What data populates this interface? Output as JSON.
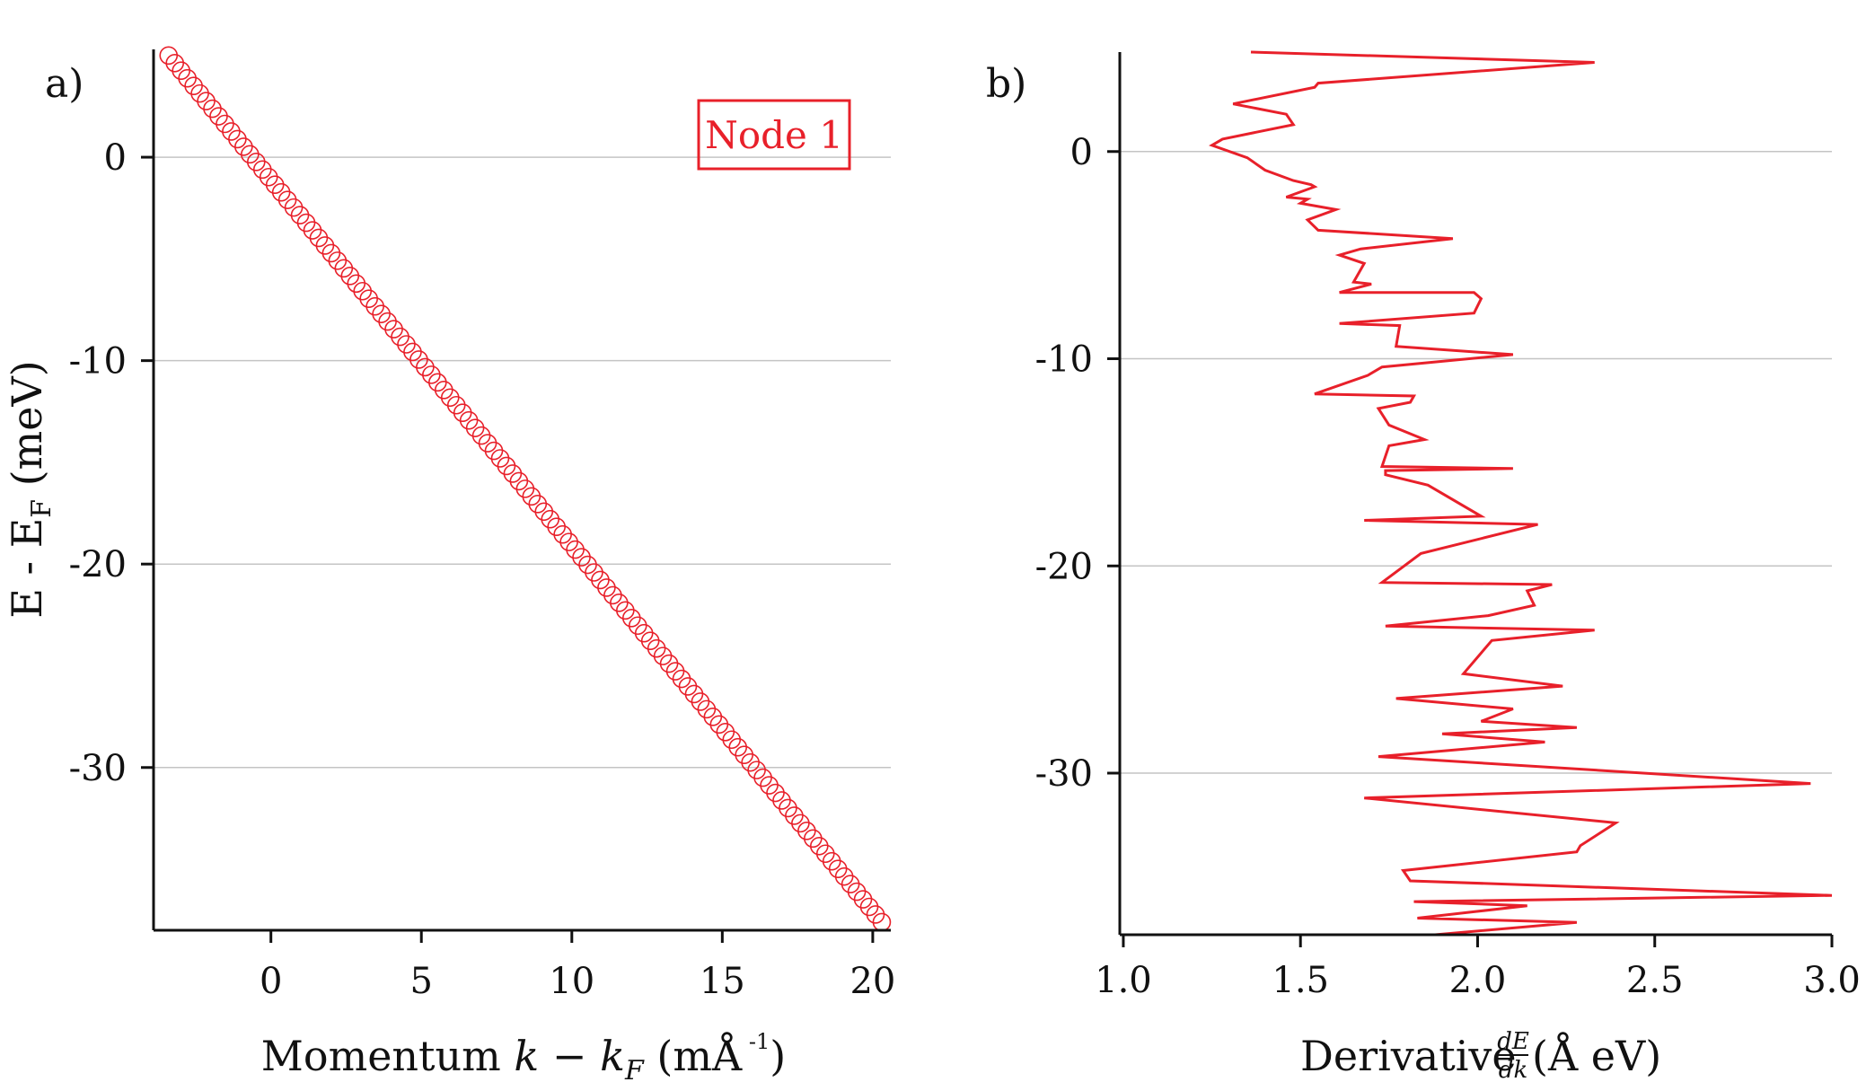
{
  "chart_data": [
    {
      "type": "scatter",
      "panel_label": "a)",
      "annotation": "Node 1",
      "xlabel": {
        "prefix": "Momentum ",
        "var": "k",
        "op": " − ",
        "var2": "k",
        "sub": "F",
        "unit_open": " (mÅ",
        "sup": " -1",
        "unit_close": ")"
      },
      "ylabel": {
        "main": "E - E",
        "sub": "F",
        "unit": " (meV)"
      },
      "xlim": [
        -3.9,
        20.6
      ],
      "ylim": [
        -38.0,
        5.3
      ],
      "xticks": [
        "0",
        "5",
        "10",
        "15",
        "20"
      ],
      "yticks": [
        "0",
        "-10",
        "-20",
        "-30"
      ],
      "grid": true,
      "marker_color": "#e8202a",
      "series": [
        {
          "x_start": -3.4,
          "x_end": 20.3,
          "y_start": 5.0,
          "y_end": -37.6,
          "points": 115
        }
      ]
    },
    {
      "type": "line",
      "panel_label": "b)",
      "xlabel": {
        "main": "Derivative ",
        "frac_num": "dE",
        "frac_den": "dk",
        "unit": " (Å eV)"
      },
      "xlim": [
        0.99,
        3.0
      ],
      "ylim": [
        -37.8,
        4.8
      ],
      "xticks": [
        "1.0",
        "1.5",
        "2.0",
        "2.5",
        "3.0"
      ],
      "yticks": [
        "0",
        "-10",
        "-20",
        "-30"
      ],
      "grid": true,
      "line_color": "#e8202a",
      "series": [
        {
          "x": [
            1.36,
            2.33,
            1.55,
            1.54,
            1.31,
            1.46,
            1.48,
            1.28,
            1.25,
            1.35,
            1.4,
            1.48,
            1.53,
            1.54,
            1.46,
            1.52,
            1.5,
            1.6,
            1.52,
            1.55,
            1.93,
            1.67,
            1.61,
            1.68,
            1.65,
            1.7,
            1.61,
            1.99,
            2.01,
            1.99,
            1.61,
            1.78,
            1.77,
            2.1,
            1.73,
            1.69,
            1.54,
            1.82,
            1.81,
            1.72,
            1.75,
            1.85,
            1.75,
            1.73,
            2.1,
            1.74,
            1.74,
            1.86,
            2.01,
            1.68,
            2.17,
            1.84,
            1.73,
            2.21,
            2.14,
            2.16,
            2.03,
            1.74,
            2.33,
            2.04,
            1.96,
            2.24,
            1.77,
            2.1,
            2.01,
            2.28,
            1.9,
            2.19,
            1.72,
            2.94,
            1.68,
            2.39,
            2.29,
            2.28,
            1.79,
            1.81,
            3.0,
            1.82,
            2.14,
            1.83,
            2.28,
            1.88
          ],
          "y": [
            4.8,
            4.3,
            3.3,
            3.1,
            2.3,
            1.8,
            1.3,
            0.6,
            0.3,
            -0.3,
            -0.9,
            -1.4,
            -1.6,
            -1.7,
            -2.2,
            -2.3,
            -2.5,
            -2.8,
            -3.3,
            -3.8,
            -4.2,
            -4.7,
            -5.0,
            -5.4,
            -6.3,
            -6.4,
            -6.8,
            -6.8,
            -7.1,
            -7.8,
            -8.3,
            -8.4,
            -9.4,
            -9.8,
            -10.4,
            -10.8,
            -11.7,
            -11.8,
            -12.1,
            -12.4,
            -13.2,
            -13.9,
            -14.2,
            -15.2,
            -15.3,
            -15.4,
            -15.6,
            -16.1,
            -17.6,
            -17.8,
            -18.0,
            -19.4,
            -20.8,
            -20.9,
            -21.2,
            -21.9,
            -22.4,
            -22.9,
            -23.1,
            -23.6,
            -25.2,
            -25.8,
            -26.4,
            -26.9,
            -27.5,
            -27.8,
            -28.1,
            -28.5,
            -29.2,
            -30.5,
            -31.2,
            -32.4,
            -33.5,
            -33.8,
            -34.7,
            -35.2,
            -35.9,
            -36.2,
            -36.4,
            -37.0,
            -37.2,
            -37.8
          ]
        }
      ]
    }
  ]
}
